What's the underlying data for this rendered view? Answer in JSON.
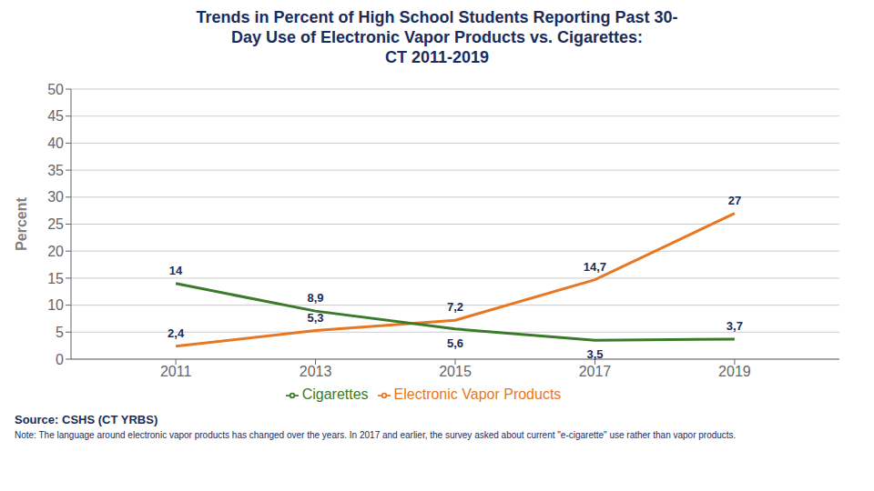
{
  "chart_data": {
    "type": "line",
    "title": "Trends in Percent of High School Students Reporting Past 30-\nDay Use of Electronic Vapor Products vs. Cigarettes:\nCT 2011-2019",
    "y_label": "Percent",
    "x": [
      2011,
      2013,
      2015,
      2017,
      2019
    ],
    "xlim": [
      2009.5,
      2020.5
    ],
    "xticks": [
      2011,
      2013,
      2015,
      2017,
      2019
    ],
    "ylim": [
      0,
      50
    ],
    "yticks": [
      0,
      5,
      10,
      15,
      20,
      25,
      30,
      35,
      40,
      45,
      50
    ],
    "grid": true,
    "legend": "bottom",
    "data_labels": true,
    "series": [
      {
        "name": "Electronic Vapor Products",
        "color": "#E87722",
        "values": [
          2.4,
          5.3,
          7.2,
          14.7,
          27
        ],
        "value_labels": [
          "2,4",
          "5,3",
          "7,2",
          "14,7",
          "27"
        ]
      },
      {
        "name": "Cigarettes",
        "color": "#3A7A2A",
        "values": [
          14,
          8.9,
          5.6,
          3.5,
          3.7
        ],
        "value_labels": [
          "14",
          "8,9",
          "5,6",
          "3,5",
          "3,7"
        ]
      }
    ],
    "annotations": [
      "Source: CSHS (CT YRBS)",
      "Note: The language around electronic vapor products has changed over the years. In 2017 and earlier, the survey asked about current \"e-cigarette\" use rather than vapor products."
    ]
  }
}
